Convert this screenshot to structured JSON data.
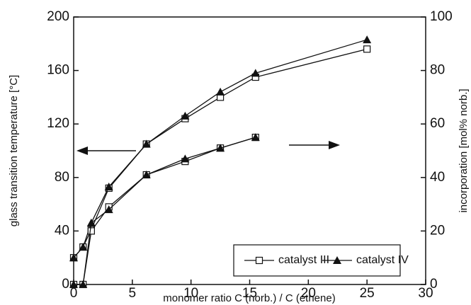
{
  "chart_data": {
    "type": "line",
    "x_label": "monomer ratio  C (norb.) / C (ethene)",
    "y_label": "glass transition temperature  [°C]",
    "y2_label": "incorporation [mol% norb.]",
    "xlim": [
      0,
      30
    ],
    "xticks": [
      0,
      5,
      10,
      15,
      20,
      25,
      30
    ],
    "ylim": [
      0,
      200
    ],
    "yticks": [
      0,
      40,
      80,
      120,
      160,
      200
    ],
    "y2lim": [
      0,
      100
    ],
    "y2ticks": [
      0,
      20,
      40,
      60,
      80,
      100
    ],
    "color": "#111111",
    "series": [
      {
        "name": "catalyst III",
        "marker": "square",
        "x": [
          0,
          0.8,
          1.5,
          3,
          6.2,
          9.5,
          12.5,
          15.5,
          25
        ],
        "values": [
          20,
          28,
          41,
          72,
          105,
          124,
          140,
          155,
          176
        ]
      },
      {
        "name": "catalyst IV",
        "marker": "triangle",
        "x": [
          0,
          0.8,
          1.5,
          3,
          6.2,
          9.5,
          12.5,
          15.5,
          25
        ],
        "values": [
          20,
          28,
          46,
          73,
          105,
          126,
          144,
          158,
          183
        ]
      }
    ],
    "y2_series": [
      {
        "marker": "square",
        "axis": "y2",
        "x": [
          0,
          0.8,
          1.5,
          3,
          6.2,
          9.5,
          12.5,
          15.5
        ],
        "values": [
          0,
          0,
          20,
          29,
          41,
          46,
          51,
          55
        ]
      },
      {
        "marker": "triangle",
        "axis": "y2",
        "x": [
          0,
          0.8,
          1.5,
          3,
          6.2,
          9.5,
          12.5,
          15.5
        ],
        "values": [
          0,
          0,
          23,
          28,
          41,
          47,
          51,
          55
        ]
      }
    ]
  }
}
